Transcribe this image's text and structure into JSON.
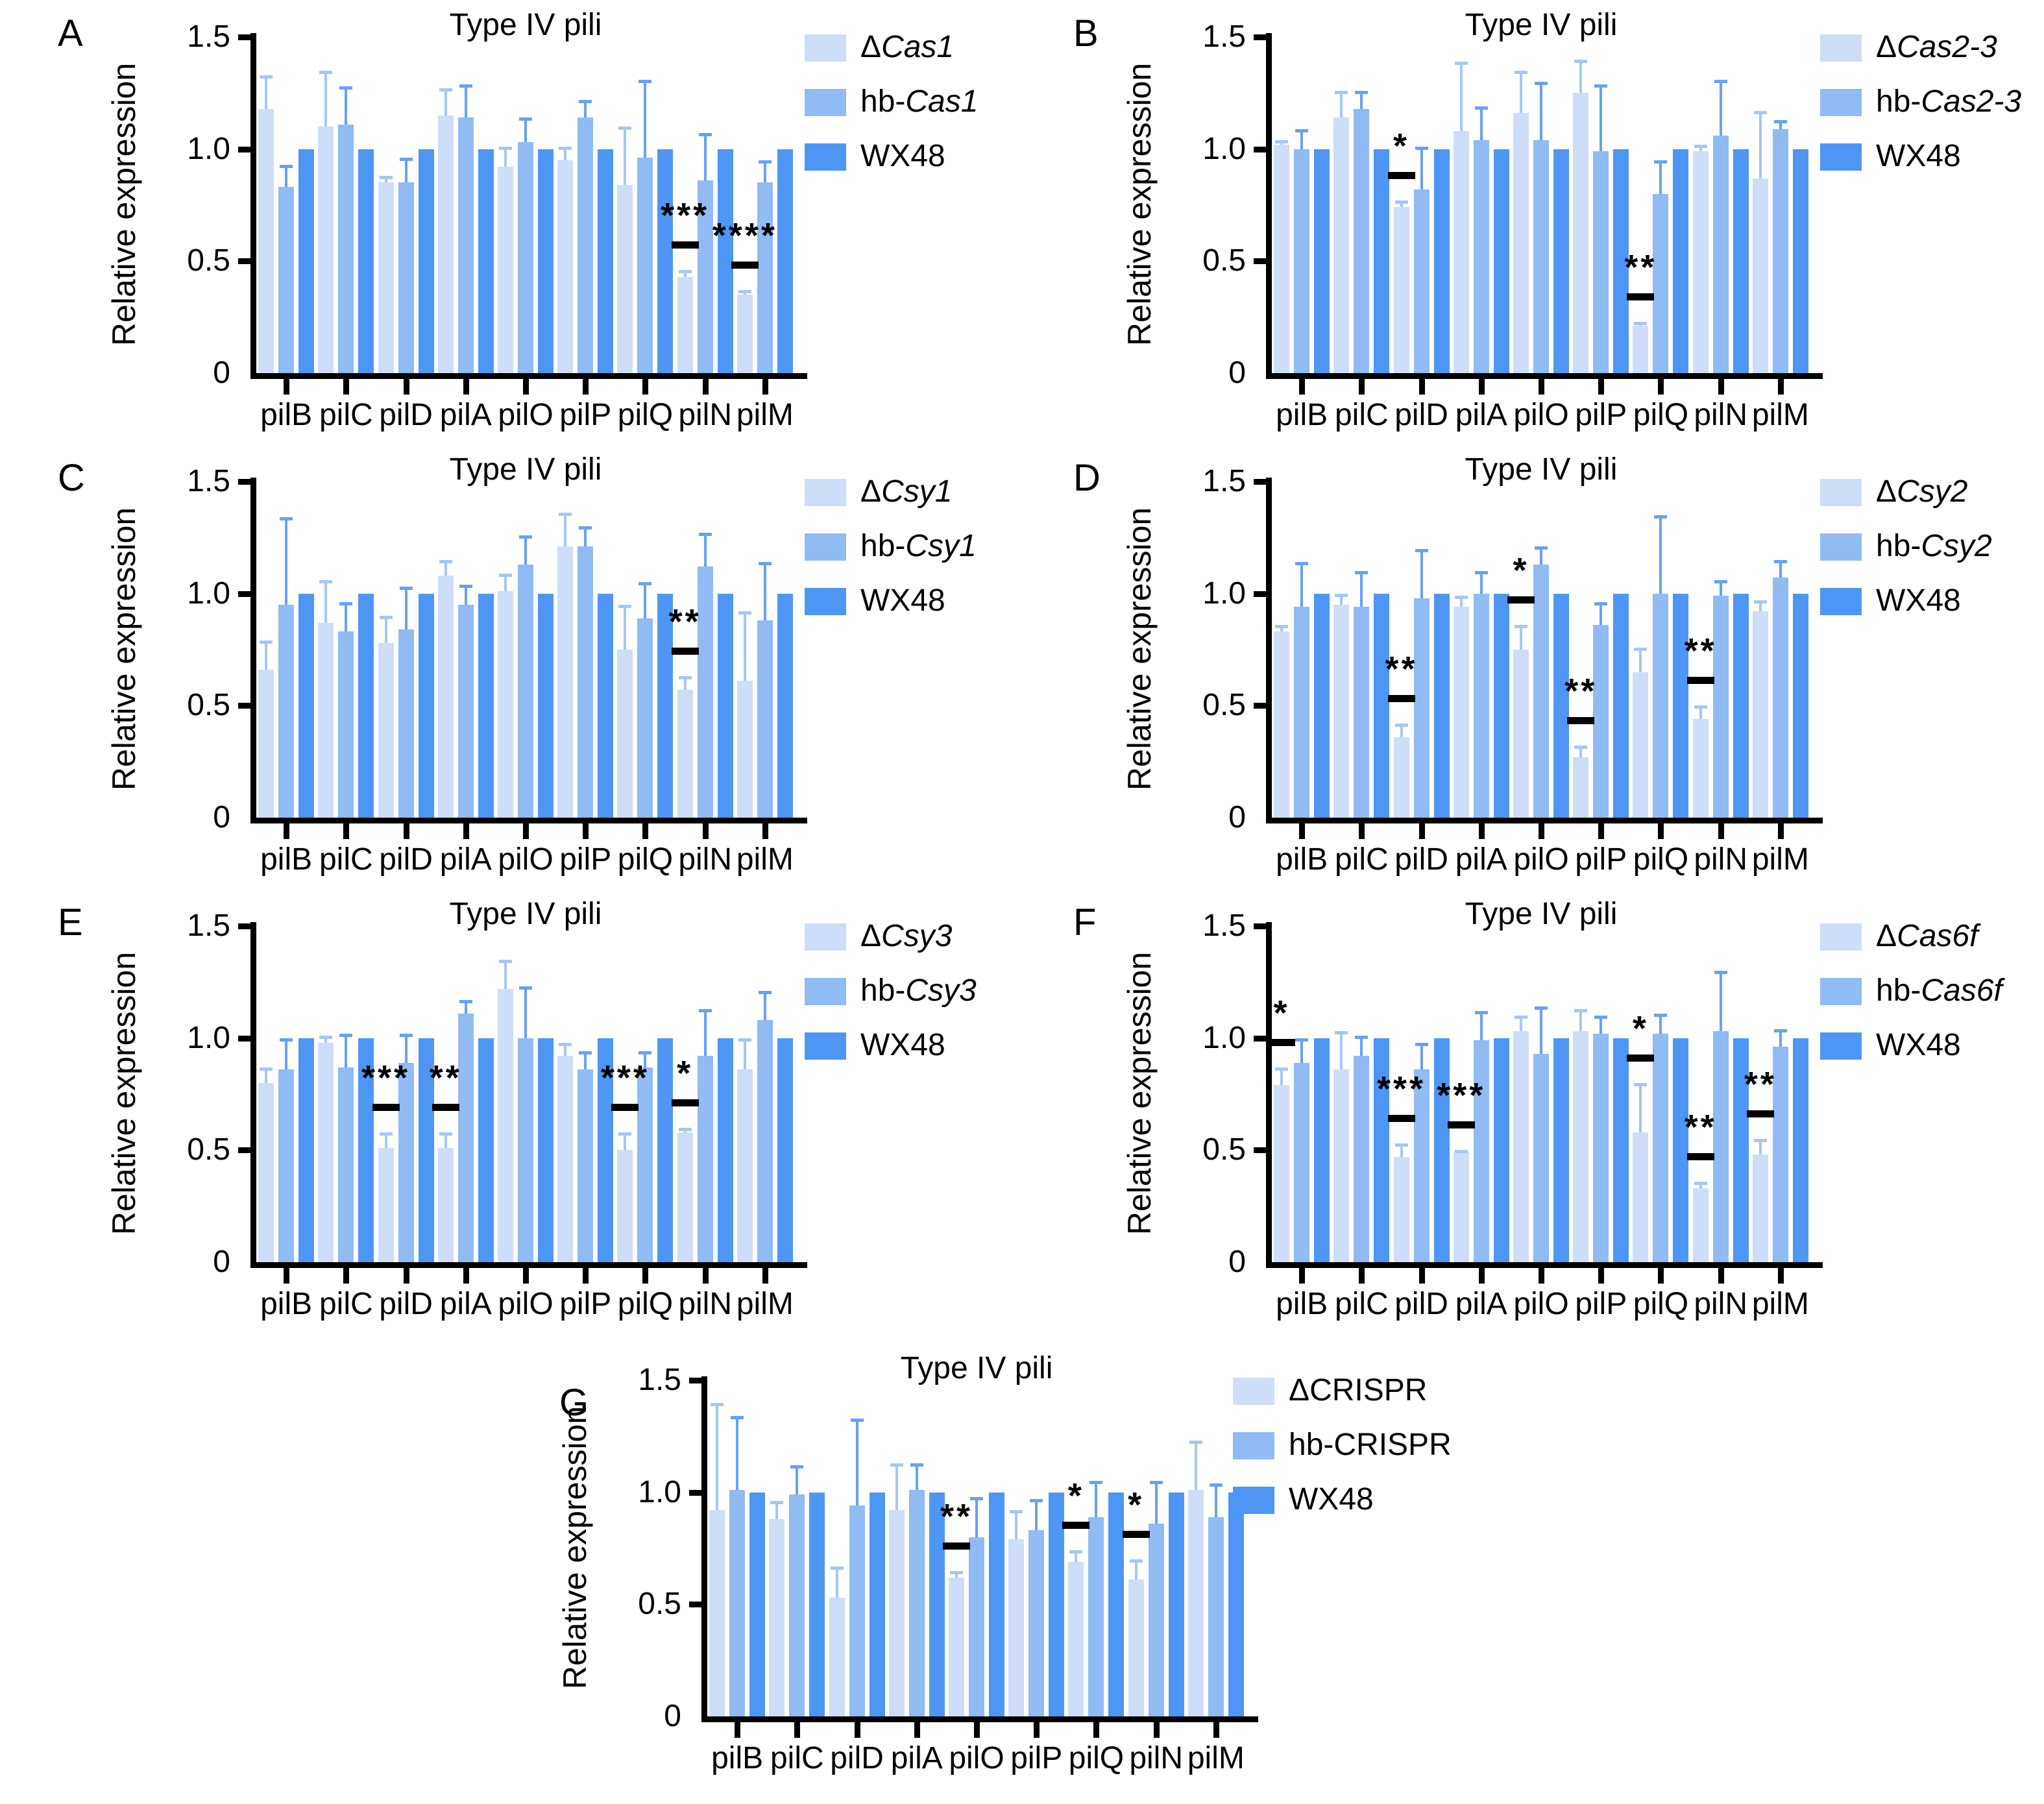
{
  "figure": {
    "colors": {
      "delta_fill": "#cedef8",
      "hb_fill": "#90bbf3",
      "wx48_fill": "#4e96f4",
      "delta_error": "#a5c7f5",
      "hb_error": "#66a2f2",
      "axis": "#000000",
      "significance": "#000000"
    },
    "panel_letters": [
      "A",
      "B",
      "C",
      "D",
      "E",
      "F",
      "G"
    ]
  },
  "chart_data": [
    {
      "panel": "A",
      "type": "bar",
      "title": "Type IV pili",
      "ylabel": "Relative expression",
      "ylim": [
        0,
        1.5
      ],
      "yticks": [
        0,
        0.5,
        1.0,
        1.5
      ],
      "ytick_labels": [
        "0",
        "0.5",
        "1.0",
        "1.5"
      ],
      "categories": [
        "pilB",
        "pilC",
        "pilD",
        "pilA",
        "pilO",
        "pilP",
        "pilQ",
        "pilN",
        "pilM"
      ],
      "legend": [
        {
          "label": "ΔCas1",
          "prefix": "Δ",
          "italic_part": "Cas1"
        },
        {
          "label": "hb-Cas1",
          "prefix": "hb-",
          "italic_part": "Cas1"
        },
        {
          "label": "WX48"
        }
      ],
      "series": [
        {
          "name": "ΔCas1",
          "role": "delta",
          "values": [
            1.18,
            1.1,
            0.85,
            1.15,
            0.92,
            0.95,
            0.84,
            0.43,
            0.35
          ],
          "err_top": [
            1.33,
            1.35,
            0.88,
            1.27,
            1.01,
            1.01,
            1.1,
            0.46,
            0.37
          ]
        },
        {
          "name": "hb-Cas1",
          "role": "hb",
          "values": [
            0.83,
            1.11,
            0.85,
            1.14,
            1.03,
            1.14,
            0.96,
            0.86,
            0.85
          ],
          "err_top": [
            0.93,
            1.28,
            0.96,
            1.29,
            1.14,
            1.22,
            1.31,
            1.07,
            0.95
          ]
        },
        {
          "name": "WX48",
          "role": "wx48",
          "values": [
            1,
            1,
            1,
            1,
            1,
            1,
            1,
            1,
            1
          ],
          "err_top": null
        }
      ],
      "significance": [
        {
          "category": "pilN",
          "stars": "***"
        },
        {
          "category": "pilM",
          "stars": "****"
        }
      ]
    },
    {
      "panel": "B",
      "type": "bar",
      "title": "Type IV pili",
      "ylabel": "Relative expression",
      "ylim": [
        0,
        1.5
      ],
      "yticks": [
        0,
        0.5,
        1.0,
        1.5
      ],
      "ytick_labels": [
        "0",
        "0.5",
        "1.0",
        "1.5"
      ],
      "categories": [
        "pilB",
        "pilC",
        "pilD",
        "pilA",
        "pilO",
        "pilP",
        "pilQ",
        "pilN",
        "pilM"
      ],
      "legend": [
        {
          "label": "ΔCas2-3",
          "prefix": "Δ",
          "italic_part": "Cas2-3"
        },
        {
          "label": "hb-Cas2-3",
          "prefix": "hb-",
          "italic_part": "Cas2-3"
        },
        {
          "label": "WX48"
        }
      ],
      "series": [
        {
          "name": "ΔCas2-3",
          "role": "delta",
          "values": [
            1.02,
            1.14,
            0.74,
            1.08,
            1.16,
            1.25,
            0.21,
            0.99,
            0.87
          ],
          "err_top": [
            1.04,
            1.26,
            0.77,
            1.39,
            1.35,
            1.4,
            0.23,
            1.02,
            1.17
          ]
        },
        {
          "name": "hb-Cas2-3",
          "role": "hb",
          "values": [
            1.0,
            1.18,
            0.82,
            1.04,
            1.04,
            0.99,
            0.8,
            1.06,
            1.09
          ],
          "err_top": [
            1.09,
            1.26,
            1.01,
            1.19,
            1.3,
            1.29,
            0.95,
            1.31,
            1.13
          ]
        },
        {
          "name": "WX48",
          "role": "wx48",
          "values": [
            1,
            1,
            1,
            1,
            1,
            1,
            1,
            1,
            1
          ],
          "err_top": null
        }
      ],
      "significance": [
        {
          "category": "pilD",
          "stars": "*"
        },
        {
          "category": "pilQ",
          "stars": "**"
        }
      ]
    },
    {
      "panel": "C",
      "type": "bar",
      "title": "Type IV pili",
      "ylabel": "Relative expression",
      "ylim": [
        0,
        1.5
      ],
      "yticks": [
        0,
        0.5,
        1.0,
        1.5
      ],
      "ytick_labels": [
        "0",
        "0.5",
        "1.0",
        "1.5"
      ],
      "categories": [
        "pilB",
        "pilC",
        "pilD",
        "pilA",
        "pilO",
        "pilP",
        "pilQ",
        "pilN",
        "pilM"
      ],
      "legend": [
        {
          "label": "ΔCsy1",
          "prefix": "Δ",
          "italic_part": "Csy1"
        },
        {
          "label": "hb-Csy1",
          "prefix": "hb-",
          "italic_part": "Csy1"
        },
        {
          "label": "WX48"
        }
      ],
      "series": [
        {
          "name": "ΔCsy1",
          "role": "delta",
          "values": [
            0.66,
            0.87,
            0.78,
            1.08,
            1.01,
            1.21,
            0.75,
            0.57,
            0.61
          ],
          "err_top": [
            0.79,
            1.06,
            0.9,
            1.15,
            1.09,
            1.36,
            0.95,
            0.63,
            0.92
          ]
        },
        {
          "name": "hb-Csy1",
          "role": "hb",
          "values": [
            0.95,
            0.83,
            0.84,
            0.95,
            1.13,
            1.21,
            0.89,
            1.12,
            0.88
          ],
          "err_top": [
            1.34,
            0.96,
            1.03,
            1.04,
            1.26,
            1.3,
            1.05,
            1.27,
            1.14
          ]
        },
        {
          "name": "WX48",
          "role": "wx48",
          "values": [
            1,
            1,
            1,
            1,
            1,
            1,
            1,
            1,
            1
          ],
          "err_top": null
        }
      ],
      "significance": [
        {
          "category": "pilN",
          "stars": "**"
        }
      ]
    },
    {
      "panel": "D",
      "type": "bar",
      "title": "Type IV pili",
      "ylabel": "Relative expression",
      "ylim": [
        0,
        1.5
      ],
      "yticks": [
        0,
        0.5,
        1.0,
        1.5
      ],
      "ytick_labels": [
        "0",
        "0.5",
        "1.0",
        "1.5"
      ],
      "categories": [
        "pilB",
        "pilC",
        "pilD",
        "pilA",
        "pilO",
        "pilP",
        "pilQ",
        "pilN",
        "pilM"
      ],
      "legend": [
        {
          "label": "ΔCsy2",
          "prefix": "Δ",
          "italic_part": "Csy2"
        },
        {
          "label": "hb-Csy2",
          "prefix": "hb-",
          "italic_part": "Csy2"
        },
        {
          "label": "WX48"
        }
      ],
      "series": [
        {
          "name": "ΔCsy2",
          "role": "delta",
          "values": [
            0.83,
            0.95,
            0.36,
            0.94,
            0.75,
            0.27,
            0.65,
            0.44,
            0.92
          ],
          "err_top": [
            0.86,
            1.0,
            0.42,
            0.99,
            0.86,
            0.32,
            0.76,
            0.5,
            0.97
          ]
        },
        {
          "name": "hb-Csy2",
          "role": "hb",
          "values": [
            0.94,
            0.94,
            0.98,
            1.0,
            1.13,
            0.86,
            1.0,
            0.99,
            1.07
          ],
          "err_top": [
            1.14,
            1.1,
            1.2,
            1.1,
            1.21,
            0.96,
            1.35,
            1.06,
            1.15
          ]
        },
        {
          "name": "WX48",
          "role": "wx48",
          "values": [
            1,
            1,
            1,
            1,
            1,
            1,
            1,
            1,
            1
          ],
          "err_top": null
        }
      ],
      "significance": [
        {
          "category": "pilD",
          "stars": "**"
        },
        {
          "category": "pilO",
          "stars": "*"
        },
        {
          "category": "pilP",
          "stars": "**"
        },
        {
          "category": "pilN",
          "stars": "**"
        }
      ]
    },
    {
      "panel": "E",
      "type": "bar",
      "title": "Type IV pili",
      "ylabel": "Relative expression",
      "ylim": [
        0,
        1.5
      ],
      "yticks": [
        0,
        0.5,
        1.0,
        1.5
      ],
      "ytick_labels": [
        "0",
        "0.5",
        "1.0",
        "1.5"
      ],
      "categories": [
        "pilB",
        "pilC",
        "pilD",
        "pilA",
        "pilO",
        "pilP",
        "pilQ",
        "pilN",
        "pilM"
      ],
      "legend": [
        {
          "label": "ΔCsy3",
          "prefix": "Δ",
          "italic_part": "Csy3"
        },
        {
          "label": "hb-Csy3",
          "prefix": "hb-",
          "italic_part": "Csy3"
        },
        {
          "label": "WX48"
        }
      ],
      "series": [
        {
          "name": "ΔCsy3",
          "role": "delta",
          "values": [
            0.8,
            0.98,
            0.51,
            0.51,
            1.22,
            0.92,
            0.5,
            0.58,
            0.86
          ],
          "err_top": [
            0.87,
            1.01,
            0.58,
            0.58,
            1.35,
            0.98,
            0.58,
            0.6,
            1.0
          ]
        },
        {
          "name": "hb-Csy3",
          "role": "hb",
          "values": [
            0.86,
            0.87,
            0.89,
            1.11,
            1.0,
            0.86,
            0.87,
            0.92,
            1.08
          ],
          "err_top": [
            1.0,
            1.02,
            1.02,
            1.17,
            1.23,
            0.94,
            0.94,
            1.13,
            1.21
          ]
        },
        {
          "name": "WX48",
          "role": "wx48",
          "values": [
            1,
            1,
            1,
            1,
            1,
            1,
            1,
            1,
            1
          ],
          "err_top": null
        }
      ],
      "significance": [
        {
          "category": "pilD",
          "stars": "***"
        },
        {
          "category": "pilA",
          "stars": "**"
        },
        {
          "category": "pilQ",
          "stars": "***"
        },
        {
          "category": "pilN",
          "stars": "*"
        }
      ]
    },
    {
      "panel": "F",
      "type": "bar",
      "title": "Type IV pili",
      "ylabel": "Relative expression",
      "ylim": [
        0,
        1.5
      ],
      "yticks": [
        0,
        0.5,
        1.0,
        1.5
      ],
      "ytick_labels": [
        "0",
        "0.5",
        "1.0",
        "1.5"
      ],
      "categories": [
        "pilB",
        "pilC",
        "pilD",
        "pilA",
        "pilO",
        "pilP",
        "pilQ",
        "pilN",
        "pilM"
      ],
      "legend": [
        {
          "label": "ΔCas6f",
          "prefix": "Δ",
          "italic_part": "Cas6f"
        },
        {
          "label": "hb-Cas6f",
          "prefix": "hb-",
          "italic_part": "Cas6f"
        },
        {
          "label": "WX48"
        }
      ],
      "series": [
        {
          "name": "ΔCas6f",
          "role": "delta",
          "values": [
            0.79,
            0.86,
            0.47,
            0.49,
            1.03,
            1.03,
            0.58,
            0.33,
            0.48
          ],
          "err_top": [
            0.87,
            1.03,
            0.53,
            0.5,
            1.1,
            1.13,
            0.8,
            0.36,
            0.55
          ]
        },
        {
          "name": "hb-Cas6f",
          "role": "hb",
          "values": [
            0.89,
            0.92,
            0.86,
            0.99,
            0.93,
            1.02,
            1.02,
            1.03,
            0.96
          ],
          "err_top": [
            1.0,
            1.01,
            0.98,
            1.12,
            1.14,
            1.1,
            1.11,
            1.3,
            1.04
          ]
        },
        {
          "name": "WX48",
          "role": "wx48",
          "values": [
            1,
            1,
            1,
            1,
            1,
            1,
            1,
            1,
            1
          ],
          "err_top": null
        }
      ],
      "significance": [
        {
          "category": "pilB",
          "stars": "*"
        },
        {
          "category": "pilD",
          "stars": "***"
        },
        {
          "category": "pilA",
          "stars": "***"
        },
        {
          "category": "pilQ",
          "stars": "*"
        },
        {
          "category": "pilN",
          "stars": "**"
        },
        {
          "category": "pilM",
          "stars": "**"
        }
      ]
    },
    {
      "panel": "G",
      "type": "bar",
      "title": "Type IV pili",
      "ylabel": "Relative expression",
      "ylim": [
        0,
        1.5
      ],
      "yticks": [
        0,
        0.5,
        1.0,
        1.5
      ],
      "ytick_labels": [
        "0",
        "0.5",
        "1.0",
        "1.5"
      ],
      "categories": [
        "pilB",
        "pilC",
        "pilD",
        "pilA",
        "pilO",
        "pilP",
        "pilQ",
        "pilN",
        "pilM"
      ],
      "legend": [
        {
          "label": "ΔCRISPR"
        },
        {
          "label": "hb-CRISPR"
        },
        {
          "label": "WX48"
        }
      ],
      "series": [
        {
          "name": "ΔCRISPR",
          "role": "delta",
          "values": [
            0.92,
            0.88,
            0.53,
            0.92,
            0.62,
            0.79,
            0.69,
            0.61,
            1.01
          ],
          "err_top": [
            1.4,
            0.96,
            0.67,
            1.13,
            0.65,
            0.92,
            0.74,
            0.7,
            1.23
          ]
        },
        {
          "name": "hb-CRISPR",
          "role": "hb",
          "values": [
            1.01,
            0.99,
            0.94,
            1.01,
            0.8,
            0.83,
            0.89,
            0.86,
            0.89
          ],
          "err_top": [
            1.34,
            1.12,
            1.33,
            1.13,
            0.98,
            0.97,
            1.05,
            1.05,
            1.04
          ]
        },
        {
          "name": "WX48",
          "role": "wx48",
          "values": [
            1,
            1,
            1,
            1,
            1,
            1,
            1,
            1,
            1
          ],
          "err_top": null
        }
      ],
      "significance": [
        {
          "category": "pilO",
          "stars": "**"
        },
        {
          "category": "pilQ",
          "stars": "*"
        },
        {
          "category": "pilN",
          "stars": "*"
        }
      ]
    }
  ]
}
